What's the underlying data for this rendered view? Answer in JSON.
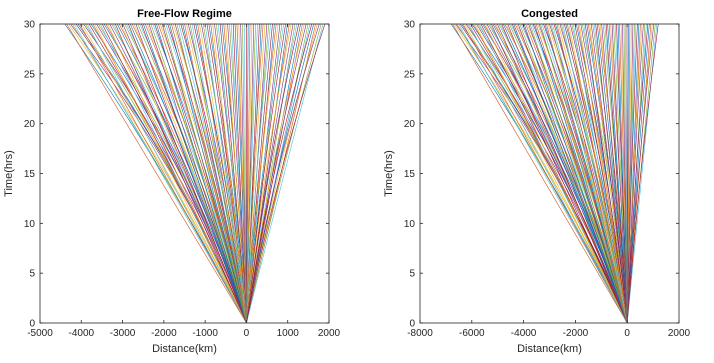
{
  "figure": {
    "line_colors": [
      "#0072BD",
      "#D95319",
      "#EDB120",
      "#7E2F8E",
      "#77AC30",
      "#4DBEEE",
      "#A2142F"
    ]
  },
  "chart_data": [
    {
      "type": "line",
      "title": "Free-Flow Regime",
      "xlabel": "Distance(km)",
      "ylabel": "Time(hrs)",
      "xlim": [
        -5000,
        2000
      ],
      "ylim": [
        0,
        30
      ],
      "xticks": [
        -5000,
        -4000,
        -3000,
        -2000,
        -1000,
        0,
        1000,
        2000
      ],
      "yticks": [
        0,
        5,
        10,
        15,
        20,
        25,
        30
      ],
      "xtick_labels": [
        "-5000",
        "-4000",
        "-3000",
        "-2000",
        "-1000",
        "0",
        "1000",
        "2000"
      ],
      "ytick_labels": [
        "0",
        "5",
        "10",
        "15",
        "20",
        "25",
        "30"
      ],
      "grid": false,
      "description_fan": {
        "origin": [
          0,
          0
        ],
        "x_at_top_min": -4400,
        "x_at_top_max": 1900,
        "num_series": 140
      }
    },
    {
      "type": "line",
      "title": "Congested",
      "xlabel": "Distance(km)",
      "ylabel": "Time(hrs)",
      "xlim": [
        -8000,
        2000
      ],
      "ylim": [
        0,
        30
      ],
      "xticks": [
        -8000,
        -6000,
        -4000,
        -2000,
        0,
        2000
      ],
      "yticks": [
        0,
        5,
        10,
        15,
        20,
        25,
        30
      ],
      "xtick_labels": [
        "-8000",
        "-6000",
        "-4000",
        "-2000",
        "0",
        "2000"
      ],
      "ytick_labels": [
        "0",
        "5",
        "10",
        "15",
        "20",
        "25",
        "30"
      ],
      "grid": false,
      "description_fan": {
        "origin": [
          0,
          0
        ],
        "x_at_top_min": -6800,
        "x_at_top_max": 1200,
        "num_series": 140
      }
    }
  ]
}
